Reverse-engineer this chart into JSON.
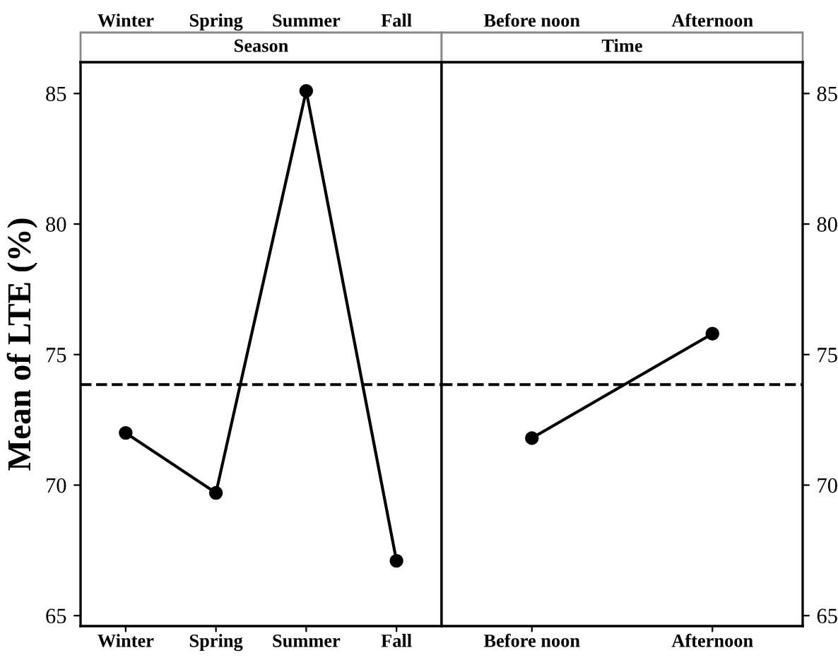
{
  "chart_data": [
    {
      "type": "line",
      "title": "Season",
      "ylabel": "Mean of LTE (%)",
      "categories": [
        "Winter",
        "Spring",
        "Summer",
        "Fall"
      ],
      "series": [
        {
          "color": "#000000",
          "values": [
            72.0,
            69.7,
            85.1,
            67.1
          ]
        }
      ],
      "ylim": [
        64.6,
        86.2
      ],
      "yticks": [
        65,
        70,
        75,
        80,
        85
      ],
      "marker": "circle",
      "line_style": "solid",
      "grid": false,
      "legend": false,
      "ref_lines": [
        {
          "axis": "y",
          "value": 73.85,
          "line_style": "dashed",
          "color": "#000000"
        }
      ]
    },
    {
      "type": "line",
      "title": "Time",
      "categories": [
        "Before noon",
        "Afternoon"
      ],
      "series": [
        {
          "color": "#000000",
          "values": [
            71.8,
            75.8
          ]
        }
      ],
      "ylim": [
        64.6,
        86.2
      ],
      "yticks": [
        65,
        70,
        75,
        80,
        85
      ],
      "marker": "circle",
      "line_style": "solid",
      "grid": false,
      "legend": false,
      "ref_lines": [
        {
          "axis": "y",
          "value": 73.85,
          "line_style": "dashed",
          "color": "#000000"
        }
      ]
    }
  ]
}
